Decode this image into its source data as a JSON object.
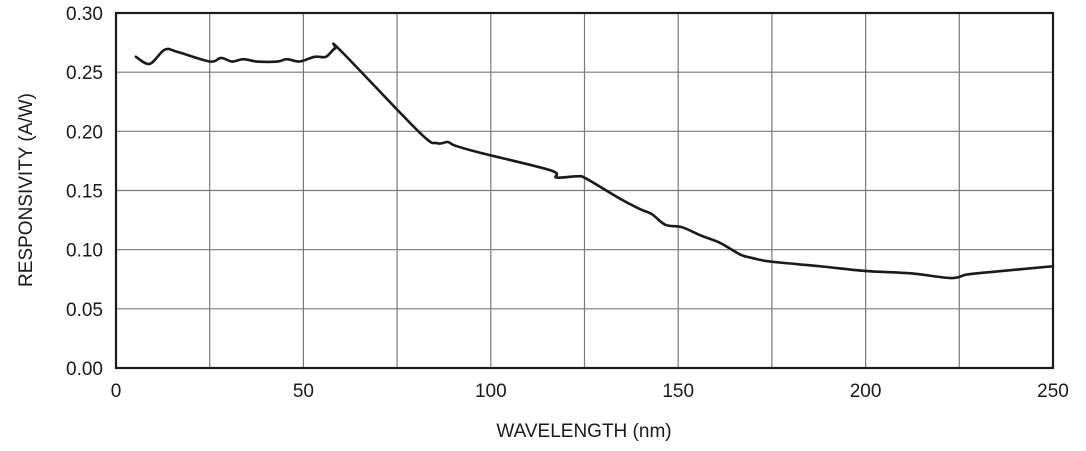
{
  "chart_data": {
    "type": "line",
    "title": "",
    "xlabel": "WAVELENGTH (nm)",
    "ylabel": "RESPONSIVITY (A/W)",
    "xlim": [
      0,
      250
    ],
    "ylim": [
      0,
      0.3
    ],
    "xticks": [
      0,
      50,
      100,
      150,
      200,
      250
    ],
    "xtick_labels": [
      "0",
      "50",
      "100",
      "150",
      "200",
      "250"
    ],
    "yticks": [
      0,
      0.05,
      0.1,
      0.15,
      0.2,
      0.25,
      0.3
    ],
    "ytick_labels": [
      "0.00",
      "0.05",
      "0.10",
      "0.15",
      "0.20",
      "0.25",
      "0.30"
    ],
    "grid": true,
    "x_grid_step": 25,
    "y_grid_step": 0.05,
    "colors": {
      "line": "#1a1a1a",
      "grid": "#7a7a7a",
      "frame": "#1a1a1a"
    },
    "series": [
      {
        "name": "Responsivity",
        "x": [
          5.3,
          9,
          13,
          16.5,
          25,
          28,
          31,
          34,
          37.6,
          43,
          45.6,
          49,
          53,
          56,
          58.4,
          60,
          81,
          85.6,
          88.5,
          90.4,
          97,
          116,
          117.5,
          123,
          125.5,
          134.5,
          140,
          143,
          146.6,
          151,
          156,
          161,
          166.5,
          169.7,
          174.5,
          187.8,
          199.8,
          212,
          222.8,
          227,
          233,
          250
        ],
        "y": [
          0.263,
          0.257,
          0.269,
          0.267,
          0.259,
          0.262,
          0.259,
          0.261,
          0.259,
          0.259,
          0.261,
          0.259,
          0.263,
          0.263,
          0.27,
          0.268,
          0.199,
          0.19,
          0.191,
          0.188,
          0.182,
          0.167,
          0.161,
          0.162,
          0.16,
          0.143,
          0.134,
          0.13,
          0.121,
          0.119,
          0.112,
          0.106,
          0.096,
          0.093,
          0.09,
          0.086,
          0.082,
          0.08,
          0.076,
          0.079,
          0.081,
          0.086
        ]
      }
    ]
  }
}
